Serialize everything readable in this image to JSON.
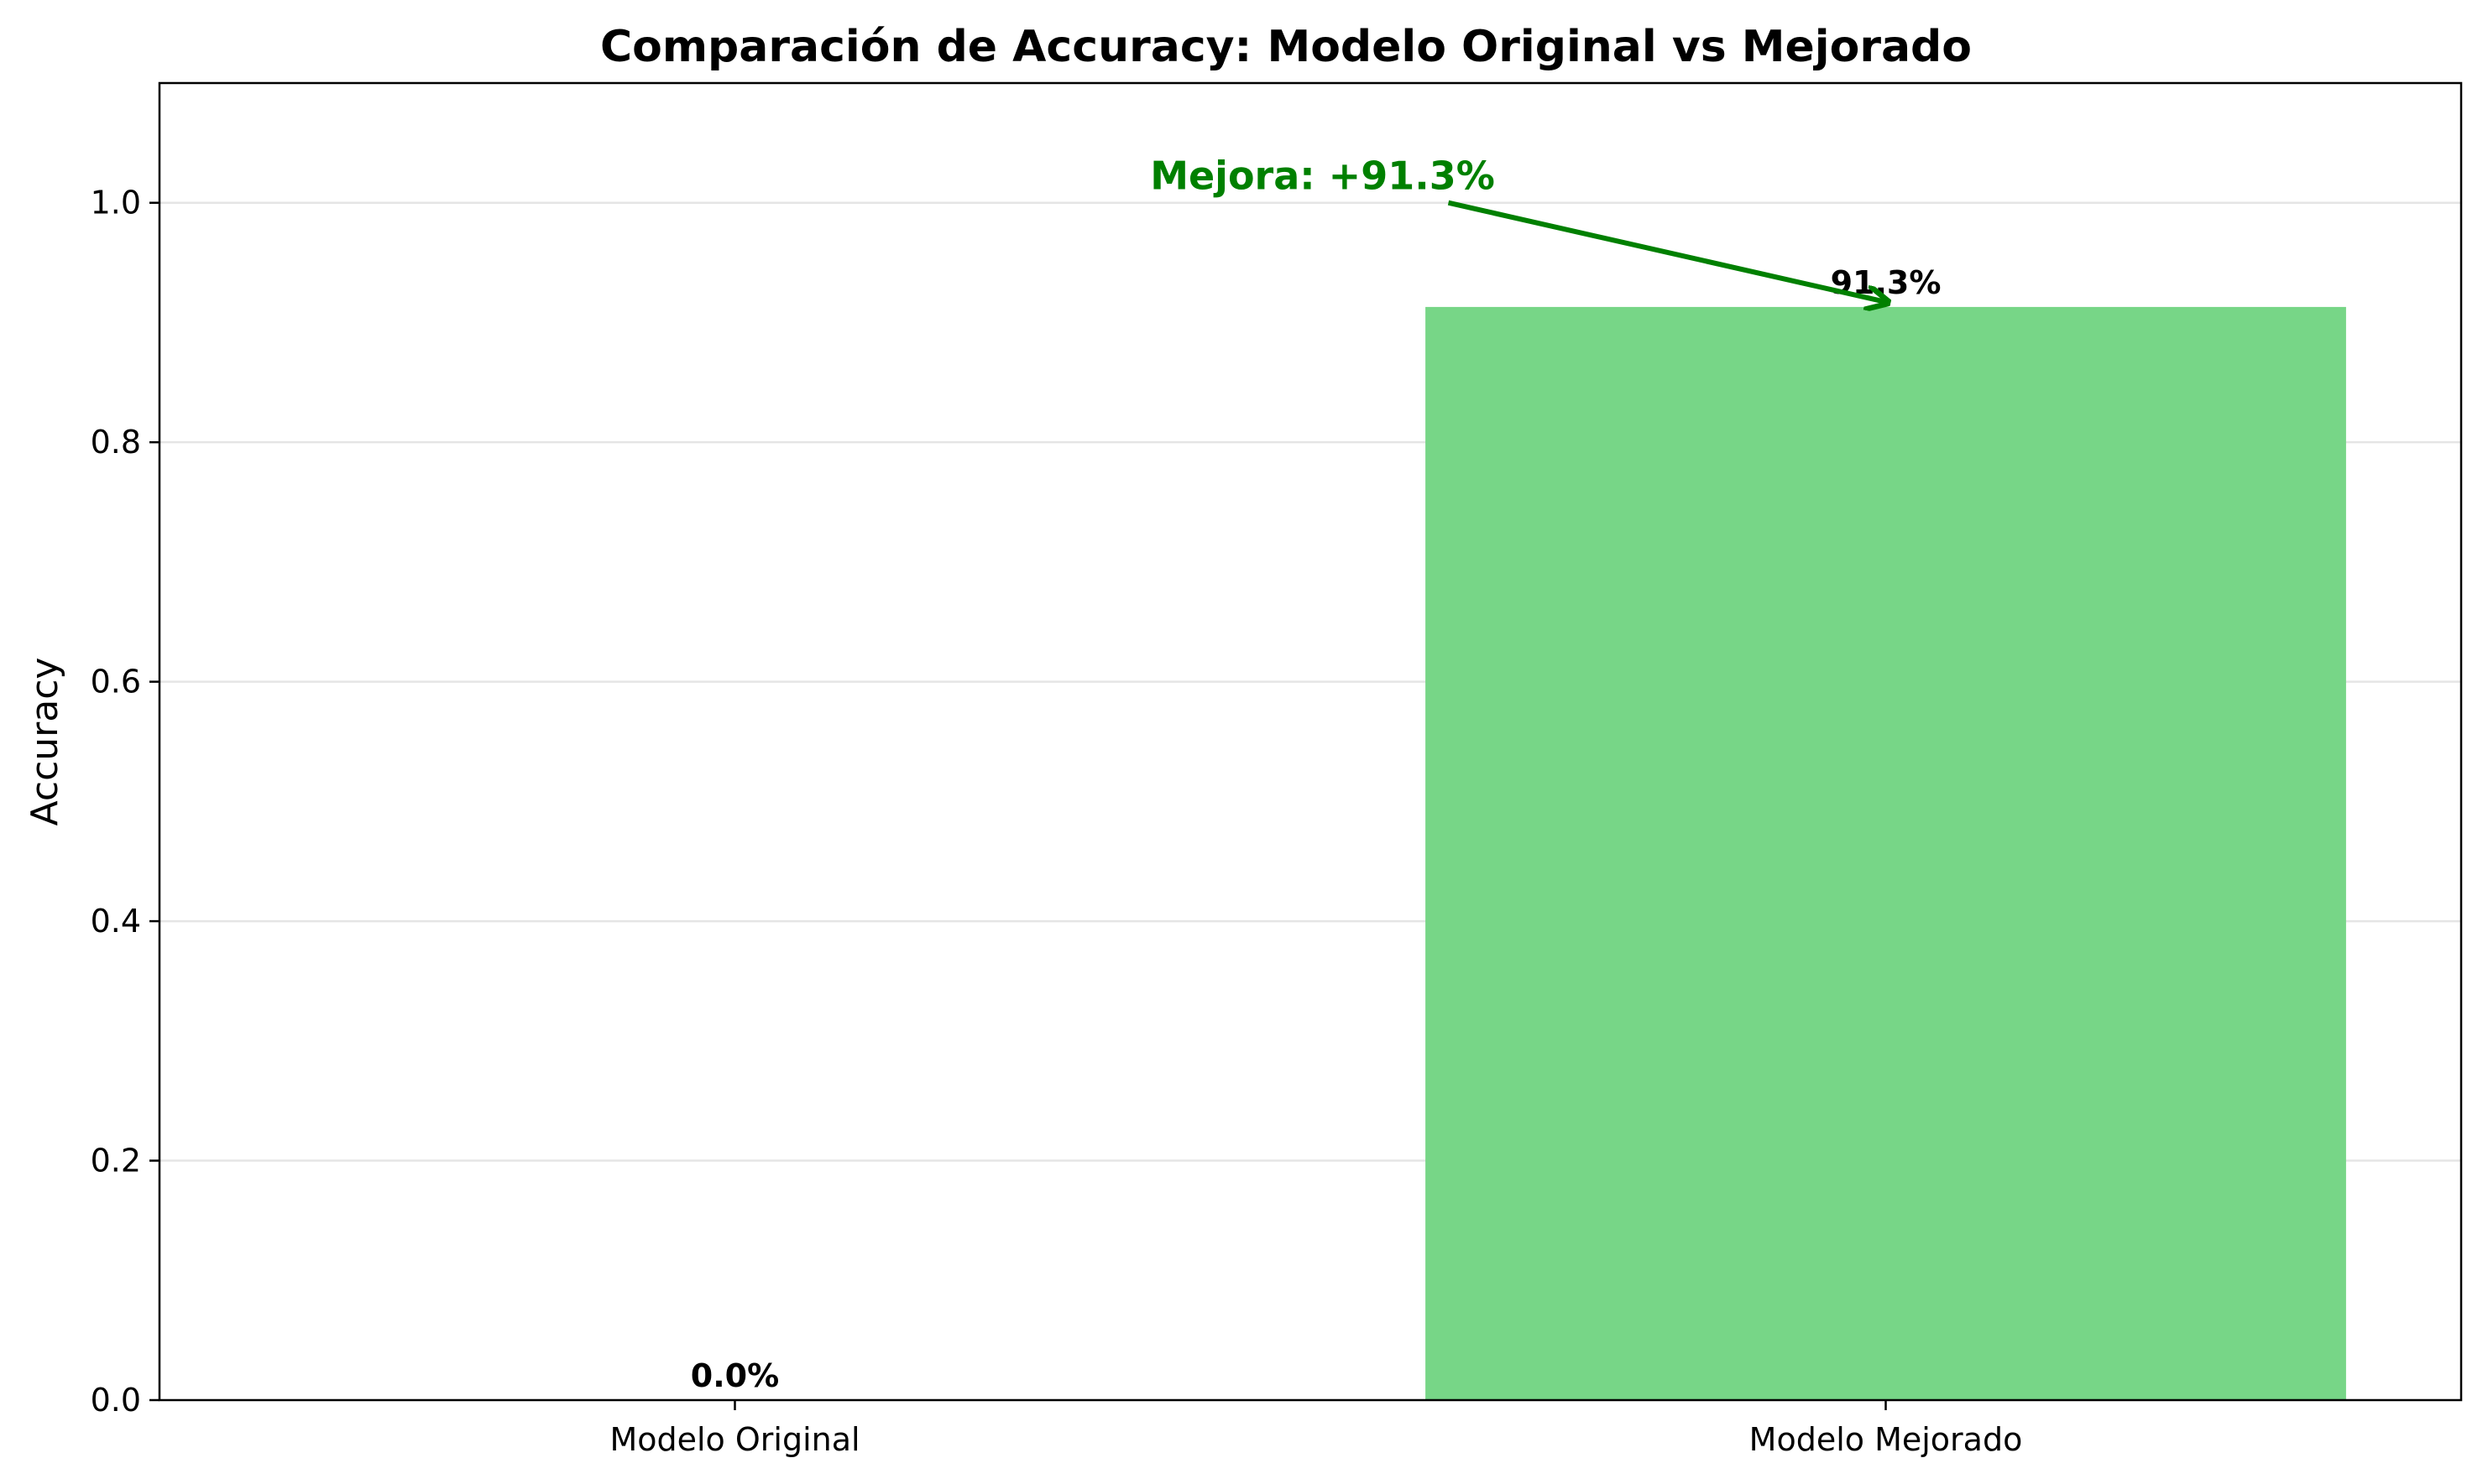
{
  "chart_data": {
    "type": "bar",
    "title": "Comparación de Accuracy: Modelo Original vs Mejorado",
    "xlabel": "",
    "ylabel": "Accuracy",
    "categories": [
      "Modelo Original",
      "Modelo Mejorado"
    ],
    "values": [
      0.0,
      0.913
    ],
    "data_labels": [
      "0.0%",
      "91.3%"
    ],
    "ylim": [
      0,
      1.1
    ],
    "yticks": [
      0.0,
      0.2,
      0.4,
      0.6,
      0.8,
      1.0
    ],
    "ytick_labels": [
      "0.0",
      "0.2",
      "0.4",
      "0.6",
      "0.8",
      "1.0"
    ],
    "grid": "horizontal",
    "legend": "none",
    "bar_colors": [
      "#e74c3c",
      "#77d687"
    ],
    "annotation": {
      "text": "Mejora: +91.3%",
      "color": "#008000",
      "points_to_category": "Modelo Mejorado",
      "points_to_value": 0.913
    }
  }
}
